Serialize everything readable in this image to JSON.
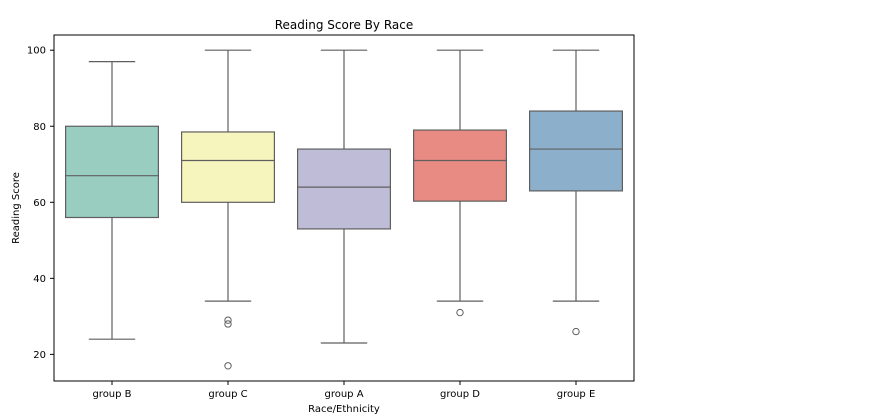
{
  "chart_data": {
    "type": "box",
    "title": "Reading Score By Race",
    "xlabel": "Race/Ethnicity",
    "ylabel": "Reading Score",
    "ylim": [
      13,
      104
    ],
    "yticks": [
      20,
      40,
      60,
      80,
      100
    ],
    "grid": false,
    "categories": [
      "group B",
      "group C",
      "group A",
      "group D",
      "group E"
    ],
    "colors": [
      "#98cdc0",
      "#f6f5be",
      "#bebcd6",
      "#e78b83",
      "#8cb0cb"
    ],
    "boxes": [
      {
        "category": "group B",
        "whisker_low": 24,
        "q1": 56,
        "median": 67,
        "q3": 80,
        "whisker_high": 97,
        "outliers": []
      },
      {
        "category": "group C",
        "whisker_low": 34,
        "q1": 60,
        "median": 71,
        "q3": 78.5,
        "whisker_high": 100,
        "outliers": [
          29,
          28,
          17
        ]
      },
      {
        "category": "group A",
        "whisker_low": 23,
        "q1": 53,
        "median": 64,
        "q3": 74,
        "whisker_high": 100,
        "outliers": []
      },
      {
        "category": "group D",
        "whisker_low": 34,
        "q1": 60.3,
        "median": 71,
        "q3": 79,
        "whisker_high": 100,
        "outliers": [
          31
        ]
      },
      {
        "category": "group E",
        "whisker_low": 34,
        "q1": 63,
        "median": 74,
        "q3": 84,
        "whisker_high": 100,
        "outliers": [
          26
        ]
      }
    ]
  }
}
